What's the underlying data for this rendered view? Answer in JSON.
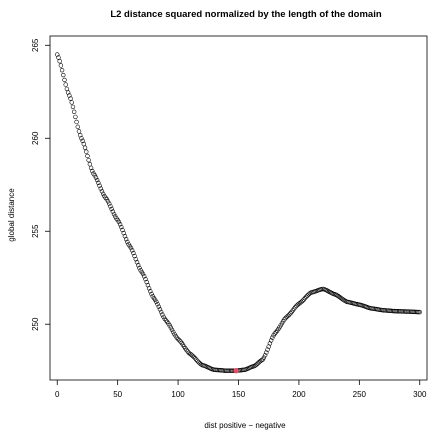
{
  "chart_data": {
    "type": "scatter",
    "title": "L2 distance squared normalized by the length of the domain",
    "xlabel": "dist positive − negative",
    "ylabel": "global distance",
    "xlim": [
      -6,
      306
    ],
    "ylim": [
      247,
      265.5
    ],
    "xticks": [
      0,
      50,
      100,
      150,
      200,
      250,
      300
    ],
    "yticks": [
      250,
      255,
      260,
      265
    ],
    "xtick_labels": [
      "0",
      "50",
      "100",
      "150",
      "200",
      "250",
      "300"
    ],
    "ytick_labels": [
      "250",
      "255",
      "260",
      "265"
    ],
    "grid": false,
    "legend": "none",
    "marker": "open-circle",
    "colors": {
      "points": "#000000",
      "highlight": "#e0506a"
    },
    "highlight_point": {
      "x": 148,
      "y": 247.5
    },
    "curve_knots": [
      {
        "x": 0,
        "y": 264.5
      },
      {
        "x": 10,
        "y": 262.3
      },
      {
        "x": 20,
        "y": 260.0
      },
      {
        "x": 30,
        "y": 258.1
      },
      {
        "x": 40,
        "y": 256.8
      },
      {
        "x": 50,
        "y": 255.6
      },
      {
        "x": 60,
        "y": 254.2
      },
      {
        "x": 70,
        "y": 252.8
      },
      {
        "x": 80,
        "y": 251.4
      },
      {
        "x": 90,
        "y": 250.2
      },
      {
        "x": 100,
        "y": 249.2
      },
      {
        "x": 110,
        "y": 248.4
      },
      {
        "x": 120,
        "y": 247.8
      },
      {
        "x": 130,
        "y": 247.55
      },
      {
        "x": 140,
        "y": 247.5
      },
      {
        "x": 148,
        "y": 247.5
      },
      {
        "x": 155,
        "y": 247.55
      },
      {
        "x": 163,
        "y": 247.75
      },
      {
        "x": 170,
        "y": 248.1
      },
      {
        "x": 180,
        "y": 249.5
      },
      {
        "x": 190,
        "y": 250.4
      },
      {
        "x": 200,
        "y": 251.1
      },
      {
        "x": 210,
        "y": 251.7
      },
      {
        "x": 220,
        "y": 251.9
      },
      {
        "x": 230,
        "y": 251.6
      },
      {
        "x": 240,
        "y": 251.2
      },
      {
        "x": 250,
        "y": 251.05
      },
      {
        "x": 260,
        "y": 250.85
      },
      {
        "x": 270,
        "y": 250.75
      },
      {
        "x": 280,
        "y": 250.7
      },
      {
        "x": 290,
        "y": 250.68
      },
      {
        "x": 300,
        "y": 250.65
      }
    ],
    "point_spacing": 1
  }
}
